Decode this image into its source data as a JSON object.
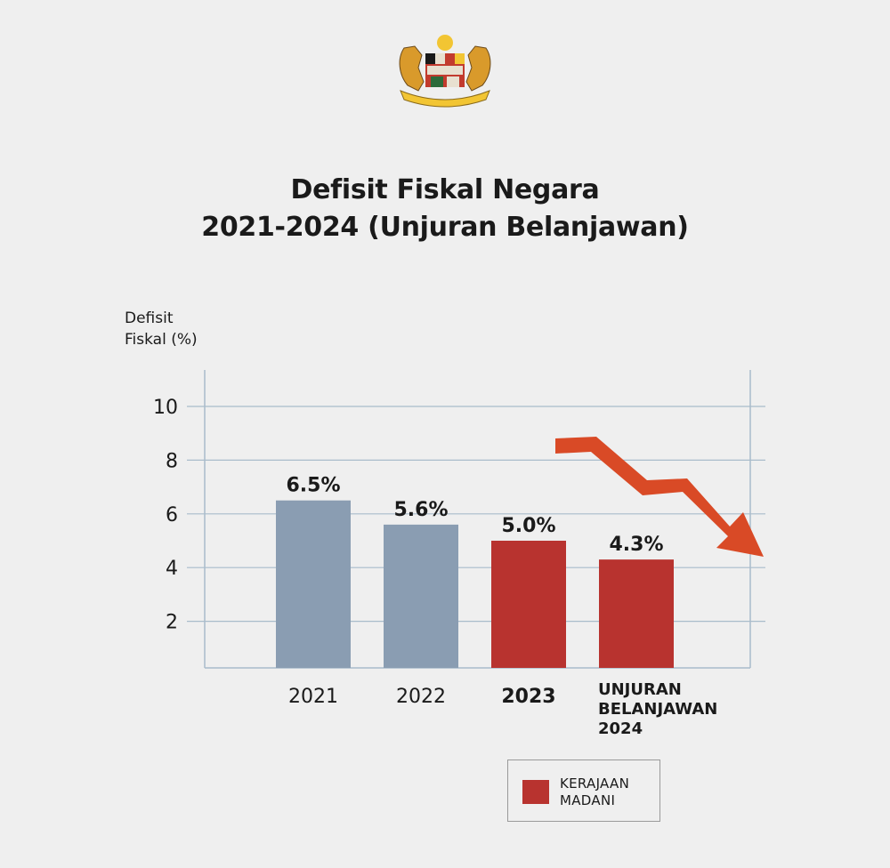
{
  "header": {
    "title_line1": "Defisit Fiskal Negara",
    "title_line2": "2021-2024 (Unjuran Belanjawan)"
  },
  "legend": {
    "label_line1": "KERAJAAN",
    "label_line2": "MADANI",
    "color": "#b8332f"
  },
  "chart_data": {
    "type": "bar",
    "title": "Defisit Fiskal Negara 2021-2024 (Unjuran Belanjawan)",
    "ylabel_lines": [
      "Defisit",
      "Fiskal (%)"
    ],
    "categories": [
      {
        "lines": [
          "2021"
        ],
        "bold": false
      },
      {
        "lines": [
          "2022"
        ],
        "bold": false
      },
      {
        "lines": [
          "2023"
        ],
        "bold": true
      },
      {
        "lines": [
          "UNJURAN",
          "BELANJAWAN",
          "2024"
        ],
        "bold": true
      }
    ],
    "values": [
      6.5,
      5.6,
      5.0,
      4.3
    ],
    "labels": [
      "6.5%",
      "5.6%",
      "5.0%",
      "4.3%"
    ],
    "colors": [
      "#8a9db2",
      "#8a9db2",
      "#b8332f",
      "#b8332f"
    ],
    "yticks": [
      2,
      4,
      6,
      8,
      10
    ],
    "ylim": [
      0,
      11
    ],
    "grid": true,
    "legend_position": "bottom-right",
    "trend_arrow": {
      "direction": "down",
      "color": "#d94a26"
    }
  }
}
